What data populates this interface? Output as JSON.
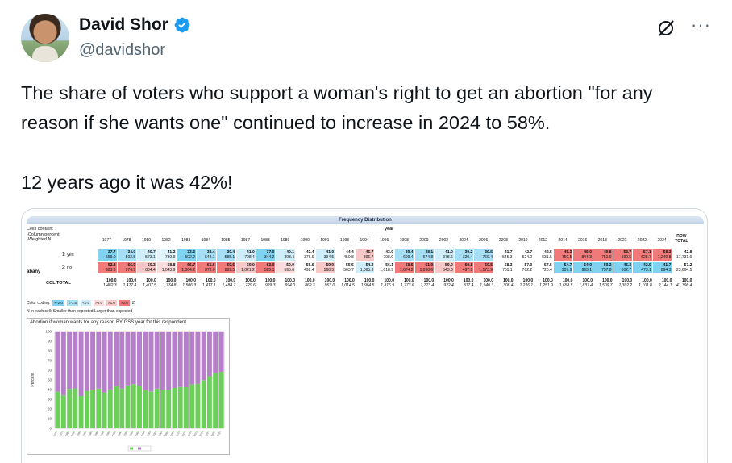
{
  "author": {
    "display_name": "David Shor",
    "handle": "@davidshor"
  },
  "icons": {
    "verified": "verified-badge-icon",
    "grok": "grok-icon",
    "more": "more-icon"
  },
  "more_label": "···",
  "tweet": {
    "text": "The share of voters who support a woman's right to get an abortion \"for any reason if she wants one\" continued to increase in 2024 to 58%.\n\n12 years ago it was 42%!"
  },
  "image": {
    "frequency_title": "Frequency Distribution",
    "cells_contain": "Cells contain:\n-Column percent\n-Weighted N",
    "year_header": "year",
    "row_total_header": "ROW TOTAL",
    "years": [
      "1977",
      "1978",
      "1980",
      "1982",
      "1983",
      "1984",
      "1985",
      "1987",
      "1988",
      "1989",
      "1990",
      "1991",
      "1993",
      "1994",
      "1996",
      "1998",
      "2000",
      "2002",
      "2004",
      "2006",
      "2008",
      "2010",
      "2012",
      "2014",
      "2016",
      "2018",
      "2021",
      "2022",
      "2024"
    ],
    "variable": "abany",
    "rows": [
      {
        "label": "1: yes",
        "pct": [
          "37.7",
          "34.0",
          "40.7",
          "41.2",
          "33.3",
          "38.4",
          "39.4",
          "41.0",
          "37.0",
          "40.1",
          "43.4",
          "41.0",
          "44.4",
          "45.7",
          "43.9",
          "39.4",
          "38.1",
          "41.0",
          "39.2",
          "39.5",
          "41.7",
          "42.7",
          "42.5",
          "45.3",
          "46.0",
          "49.8",
          "53.7",
          "57.1",
          "58.3"
        ],
        "n": [
          "559.0",
          "502.5",
          "573.1",
          "730.9",
          "502.2",
          "544.1",
          "585.1",
          "708.4",
          "344.2",
          "398.4",
          "376.9",
          "394.5",
          "450.8",
          "896.7",
          "798.0",
          "699.4",
          "674.8",
          "378.6",
          "320.4",
          "766.4",
          "545.3",
          "524.0",
          "531.5",
          "750.5",
          "844.3",
          "751.9",
          "699.5",
          "628.7",
          "1,249.8"
        ],
        "total_pct": "42.8",
        "total_n": "17,731.9",
        "colors": [
          "#7fd3f0",
          "#a5def5",
          "#cfeef9",
          "#dff4fb",
          "#7fd3f0",
          "#a5def5",
          "#a5def5",
          "#cfeef9",
          "#7fd3f0",
          "#cfeef9",
          "#fff",
          "#cfeef9",
          "#fff",
          "#f7c8c8",
          "#fff",
          "#a5def5",
          "#a5def5",
          "#cfeef9",
          "#a5def5",
          "#a5def5",
          "#fff",
          "#fff",
          "#fff",
          "#f07a7a",
          "#f07a7a",
          "#f07a7a",
          "#f07a7a",
          "#f07a7a",
          "#f07a7a"
        ]
      },
      {
        "label": "2: no",
        "pct": [
          "62.3",
          "66.0",
          "59.3",
          "58.8",
          "66.7",
          "61.6",
          "60.6",
          "59.0",
          "63.0",
          "59.9",
          "56.6",
          "59.0",
          "55.6",
          "54.3",
          "56.1",
          "60.6",
          "61.9",
          "59.0",
          "60.8",
          "60.5",
          "58.3",
          "57.3",
          "57.5",
          "54.7",
          "54.0",
          "50.2",
          "46.3",
          "42.9",
          "41.7"
        ],
        "n": [
          "923.3",
          "974.9",
          "834.4",
          "1,043.9",
          "1,004.2",
          "873.0",
          "899.5",
          "1,021.2",
          "585.1",
          "595.6",
          "492.4",
          "568.5",
          "563.7",
          "1,065.8",
          "1,018.9",
          "1,074.2",
          "1,098.6",
          "543.8",
          "497.0",
          "1,173.9",
          "761.1",
          "702.2",
          "720.4",
          "907.9",
          "993.1",
          "757.8",
          "602.7",
          "473.1",
          "894.3"
        ],
        "total_pct": "57.2",
        "total_n": "23,664.5",
        "colors": [
          "#f07a7a",
          "#f07a7a",
          "#f7c8c8",
          "#fbdcdc",
          "#f07a7a",
          "#f07a7a",
          "#f07a7a",
          "#f7c8c8",
          "#f07a7a",
          "#fbdcdc",
          "#fff",
          "#f7c8c8",
          "#fff",
          "#cfeef9",
          "#fff",
          "#f07a7a",
          "#f07a7a",
          "#f7c8c8",
          "#f07a7a",
          "#f07a7a",
          "#fff",
          "#fff",
          "#fff",
          "#7fd3f0",
          "#7fd3f0",
          "#7fd3f0",
          "#7fd3f0",
          "#7fd3f0",
          "#7fd3f0"
        ]
      }
    ],
    "col_total_label": "COL TOTAL",
    "col_total_pct": "100.0",
    "col_total_n": [
      "1,482.3",
      "1,477.4",
      "1,407.5",
      "1,774.8",
      "1,506.3",
      "1,417.1",
      "1,484.7",
      "1,729.6",
      "929.3",
      "994.0",
      "869.3",
      "963.0",
      "1,014.5",
      "1,964.5",
      "1,816.9",
      "1,773.6",
      "1,773.4",
      "922.4",
      "817.4",
      "1,940.3",
      "1,306.4",
      "1,226.1",
      "1,251.9",
      "1,658.5",
      "1,837.4",
      "1,509.7",
      "1,302.2",
      "1,101.8",
      "2,144.1"
    ],
    "col_total_all": "41,396.4",
    "color_coding_label": "Color coding:",
    "color_swatches": [
      {
        "label": "<-2.0",
        "color": "#7fd3f0"
      },
      {
        "label": "<-1.0",
        "color": "#a5def5"
      },
      {
        "label": "<0.0",
        "color": "#cfeef9"
      },
      {
        "label": ">0.0",
        "color": "#fbdcdc"
      },
      {
        "label": ">1.0",
        "color": "#f7c8c8"
      },
      {
        "label": ">2.0",
        "color": "#f07a7a"
      }
    ],
    "color_coding_z": "Z",
    "cell_note": "N in each cell:   Smaller than expected   Larger than expected",
    "chart_title": "Abortion if woman wants for any reason BY GSS year for this respondent",
    "chart_ylabel": "Percent"
  },
  "chart_data": {
    "type": "bar",
    "stacked": true,
    "title": "Abortion if woman wants for any reason BY GSS year for this respondent",
    "ylabel": "Percent",
    "ylim": [
      0,
      100
    ],
    "yticks": [
      0,
      10,
      20,
      30,
      40,
      50,
      60,
      70,
      80,
      90,
      100
    ],
    "categories": [
      "1977",
      "1978",
      "1980",
      "1982",
      "1983",
      "1984",
      "1985",
      "1987",
      "1988",
      "1989",
      "1990",
      "1991",
      "1993",
      "1994",
      "1996",
      "1998",
      "2000",
      "2002",
      "2004",
      "2006",
      "2008",
      "2010",
      "2012",
      "2014",
      "2016",
      "2018",
      "2021",
      "2022",
      "2024"
    ],
    "series": [
      {
        "name": "",
        "color": "#6ccf5a",
        "values": [
          37.7,
          34.0,
          40.7,
          41.2,
          33.3,
          38.4,
          39.4,
          41.0,
          37.0,
          40.1,
          43.4,
          41.0,
          44.4,
          45.7,
          43.9,
          39.4,
          38.1,
          41.0,
          39.2,
          39.5,
          41.7,
          42.7,
          42.5,
          45.3,
          46.0,
          49.8,
          53.7,
          57.1,
          58.3
        ]
      },
      {
        "name": "",
        "color": "#b67fc9",
        "values": [
          62.3,
          66.0,
          59.3,
          58.8,
          66.7,
          61.6,
          60.6,
          59.0,
          63.0,
          59.9,
          56.6,
          59.0,
          55.6,
          54.3,
          56.1,
          60.6,
          61.9,
          59.0,
          60.8,
          60.5,
          58.3,
          57.3,
          57.5,
          54.7,
          54.0,
          50.2,
          46.3,
          42.9,
          41.7
        ]
      }
    ],
    "legend": "bottom"
  }
}
